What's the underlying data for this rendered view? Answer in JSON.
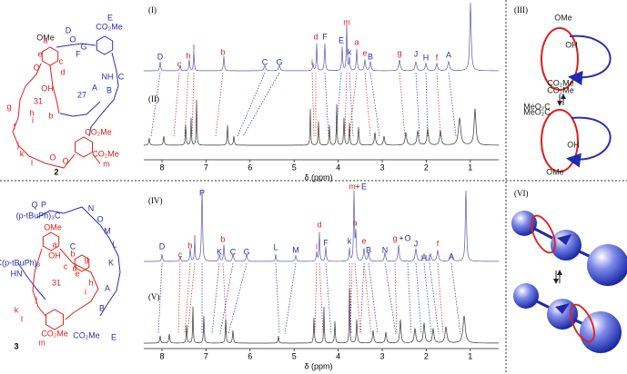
{
  "figure": {
    "top": {
      "spectrum_labels": [
        "(I)",
        "(II)"
      ],
      "x_axis": {
        "label": "δ (ppm)",
        "ticks": [
          8,
          7,
          6,
          5,
          4,
          3,
          2,
          1
        ]
      },
      "peak_labels": [
        "D",
        "c",
        "h",
        "l",
        "b",
        "C",
        "G",
        "i",
        "d",
        "F",
        "E",
        "m",
        "k",
        "a",
        "e",
        "B",
        "g",
        "J",
        "H",
        "f",
        "A"
      ]
    },
    "bottom": {
      "spectrum_labels": [
        "(IV)",
        "(V)"
      ],
      "x_axis": {
        "label": "δ (ppm)",
        "ticks": [
          8,
          7,
          6,
          5,
          4,
          3,
          2,
          1
        ]
      },
      "peak_labels": [
        "D",
        "c",
        "h",
        "l",
        "P",
        "b",
        "K",
        "C",
        "G",
        "L",
        "M",
        "i",
        "d",
        "F",
        "m",
        "+",
        "E",
        "k",
        "a",
        "e",
        "B",
        "N",
        "g",
        "+",
        "O",
        "J",
        "H",
        "I",
        "f",
        "A"
      ]
    },
    "structure_top": {
      "compound": "2",
      "labels": [
        "OMe",
        "CO₂Me",
        "E",
        "D",
        "G",
        "F",
        "O",
        "NH",
        "C",
        "B",
        "A",
        "OH",
        "27",
        "31",
        "O",
        "e",
        "c",
        "d",
        "g",
        "f",
        "h",
        "i",
        "j",
        "k",
        "l",
        "b",
        "a",
        "CO₂Me",
        "CO₂Me",
        "m",
        "O",
        "O"
      ]
    },
    "structure_bottom": {
      "compound": "3",
      "labels": [
        "(p-tBuPh)₃C",
        "Q",
        "P",
        "O",
        "N",
        "M",
        "L",
        "K",
        "C(p-tBuPh)₃",
        "HN",
        "OMe",
        "a",
        "OH",
        "b",
        "c",
        "d",
        "31",
        "e",
        "g",
        "h",
        "i",
        "j",
        "k",
        "l",
        "CO₂Me",
        "CO₂Me",
        "m",
        "E",
        "B",
        "A",
        "C"
      ]
    },
    "panel_III": {
      "label": "(III)",
      "labels": [
        "OMe",
        "OH",
        "CO₂Me",
        "CO₂Me",
        "MeO₂C",
        "MeO₂C",
        "OH",
        "OMe"
      ]
    },
    "panel_VI": {
      "label": "(VI)"
    }
  }
}
